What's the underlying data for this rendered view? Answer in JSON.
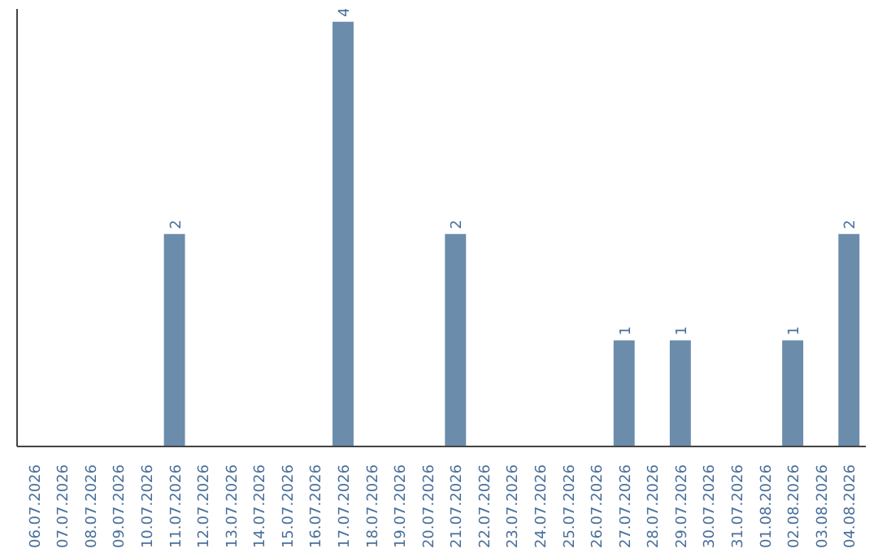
{
  "chart_data": {
    "type": "bar",
    "categories": [
      "06.07.2026",
      "07.07.2026",
      "08.07.2026",
      "09.07.2026",
      "10.07.2026",
      "11.07.2026",
      "12.07.2026",
      "13.07.2026",
      "14.07.2026",
      "15.07.2026",
      "16.07.2026",
      "17.07.2026",
      "18.07.2026",
      "19.07.2026",
      "20.07.2026",
      "21.07.2026",
      "22.07.2026",
      "23.07.2026",
      "24.07.2026",
      "25.07.2026",
      "26.07.2026",
      "27.07.2026",
      "28.07.2026",
      "29.07.2026",
      "30.07.2026",
      "31.07.2026",
      "01.08.2026",
      "02.08.2026",
      "03.08.2026",
      "04.08.2026"
    ],
    "values": [
      0,
      0,
      0,
      0,
      0,
      2,
      0,
      0,
      0,
      0,
      0,
      4,
      0,
      0,
      0,
      2,
      0,
      0,
      0,
      0,
      0,
      1,
      0,
      1,
      0,
      0,
      0,
      1,
      0,
      2
    ],
    "value_labels": [
      null,
      null,
      null,
      null,
      null,
      "2",
      null,
      null,
      null,
      null,
      null,
      "4",
      null,
      null,
      null,
      "2",
      null,
      null,
      null,
      null,
      null,
      "1",
      null,
      "1",
      null,
      null,
      null,
      "1",
      null,
      "2"
    ],
    "color": "#6b8cab",
    "grid": false
  }
}
